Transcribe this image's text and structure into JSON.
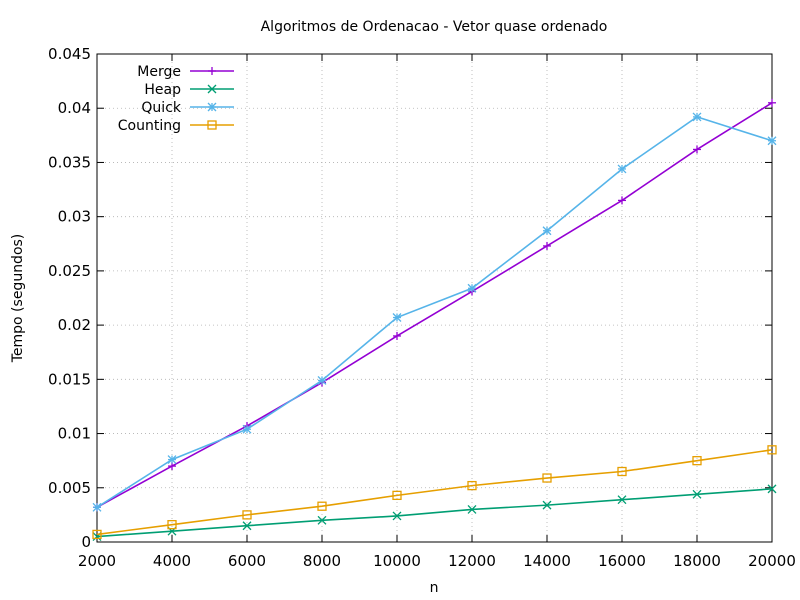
{
  "chart_data": {
    "type": "line",
    "title": "Algoritmos de Ordenacao - Vetor quase ordenado",
    "xlabel": "n",
    "ylabel": "Tempo (segundos)",
    "x": [
      2000,
      4000,
      6000,
      8000,
      10000,
      12000,
      14000,
      16000,
      18000,
      20000
    ],
    "xlim": [
      2000,
      20000
    ],
    "ylim": [
      0,
      0.045
    ],
    "xticks": [
      2000,
      4000,
      6000,
      8000,
      10000,
      12000,
      14000,
      16000,
      18000,
      20000
    ],
    "yticks": [
      0,
      0.005,
      0.01,
      0.015,
      0.02,
      0.025,
      0.03,
      0.035,
      0.04,
      0.045
    ],
    "ytick_labels": [
      "0",
      "0.005",
      "0.01",
      "0.015",
      "0.02",
      "0.025",
      "0.03",
      "0.035",
      "0.04",
      "0.045"
    ],
    "grid": true,
    "legend_position": "top-left",
    "series": [
      {
        "name": "Merge",
        "color": "#9400d3",
        "marker": "plus",
        "values": [
          0.0032,
          0.007,
          0.0107,
          0.0147,
          0.019,
          0.0231,
          0.0273,
          0.0315,
          0.0362,
          0.0405
        ]
      },
      {
        "name": "Heap",
        "color": "#009e73",
        "marker": "cross",
        "values": [
          0.0005,
          0.001,
          0.0015,
          0.002,
          0.0024,
          0.003,
          0.0034,
          0.0039,
          0.0044,
          0.0049
        ]
      },
      {
        "name": "Quick",
        "color": "#56b4e9",
        "marker": "star",
        "values": [
          0.0032,
          0.0076,
          0.0104,
          0.0149,
          0.0207,
          0.0234,
          0.0287,
          0.0344,
          0.0392,
          0.037
        ]
      },
      {
        "name": "Counting",
        "color": "#e69f00",
        "marker": "square",
        "values": [
          0.0007,
          0.0016,
          0.0025,
          0.0033,
          0.0043,
          0.0052,
          0.0059,
          0.0065,
          0.0075,
          0.0085
        ]
      }
    ]
  }
}
